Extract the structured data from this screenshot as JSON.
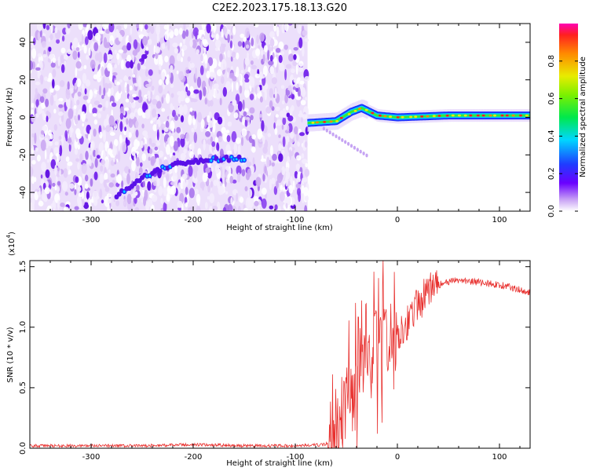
{
  "title": "C2E2.2023.175.18.13.G20",
  "chart_data": [
    {
      "type": "heatmap",
      "xlabel": "Height of straight line (km)",
      "ylabel": "Frequency (Hz)",
      "xlim": [
        -360,
        130
      ],
      "ylim": [
        -50,
        50
      ],
      "xticks": [
        -300,
        -200,
        -100,
        0,
        100
      ],
      "yticks": [
        -40,
        -20,
        0,
        20,
        40
      ],
      "xtick_labels": [
        "-300",
        "-200",
        "-100",
        "0",
        "100"
      ],
      "ytick_labels": [
        "-40",
        "-20",
        "0",
        "20",
        "40"
      ],
      "noise_region_x": [
        -360,
        -88
      ],
      "signal_band": {
        "x": [
          -88,
          -60,
          -45,
          -35,
          -20,
          0,
          50,
          130
        ],
        "y": [
          -3,
          -2,
          3,
          5,
          1,
          0,
          1,
          1
        ]
      },
      "weak_trace": {
        "x": [
          -275,
          -260,
          -245,
          -230,
          -210,
          -190,
          -170,
          -150
        ],
        "y": [
          -42,
          -36,
          -31,
          -27,
          -24,
          -23,
          -22,
          -22
        ]
      },
      "colorbar": {
        "label": "Normalized spectral amplitude",
        "range": [
          0,
          1
        ],
        "ticks": [
          "0.0",
          "0.2",
          "0.4",
          "0.6",
          "0.8"
        ]
      }
    },
    {
      "type": "line",
      "xlabel": "Height of straight line (km)",
      "ylabel": "SNR (10 * v/v)",
      "scale_label": "(x10",
      "scale_exponent": "4",
      "scale_close": ")",
      "xlim": [
        -360,
        130
      ],
      "ylim": [
        0,
        1.55
      ],
      "xticks": [
        -300,
        -200,
        -100,
        0,
        100
      ],
      "yticks": [
        0.0,
        0.5,
        1.0,
        1.5
      ],
      "xtick_labels": [
        "-300",
        "-200",
        "-100",
        "0",
        "100"
      ],
      "ytick_labels": [
        "0.0",
        "0.5",
        "1.0",
        "1.5"
      ],
      "series": [
        {
          "color": "#e8302e",
          "x": [
            -360,
            -250,
            -200,
            -150,
            -100,
            -70,
            -60,
            -50,
            -40,
            -30,
            -20,
            -10,
            0,
            10,
            20,
            30,
            40,
            50,
            60,
            70,
            80,
            90,
            100,
            110,
            120,
            130
          ],
          "y": [
            0.02,
            0.02,
            0.03,
            0.02,
            0.02,
            0.03,
            0.15,
            0.45,
            0.6,
            0.7,
            0.8,
            0.88,
            0.95,
            1.05,
            1.18,
            1.3,
            1.35,
            1.37,
            1.39,
            1.38,
            1.37,
            1.36,
            1.35,
            1.33,
            1.31,
            1.29
          ]
        }
      ]
    }
  ]
}
